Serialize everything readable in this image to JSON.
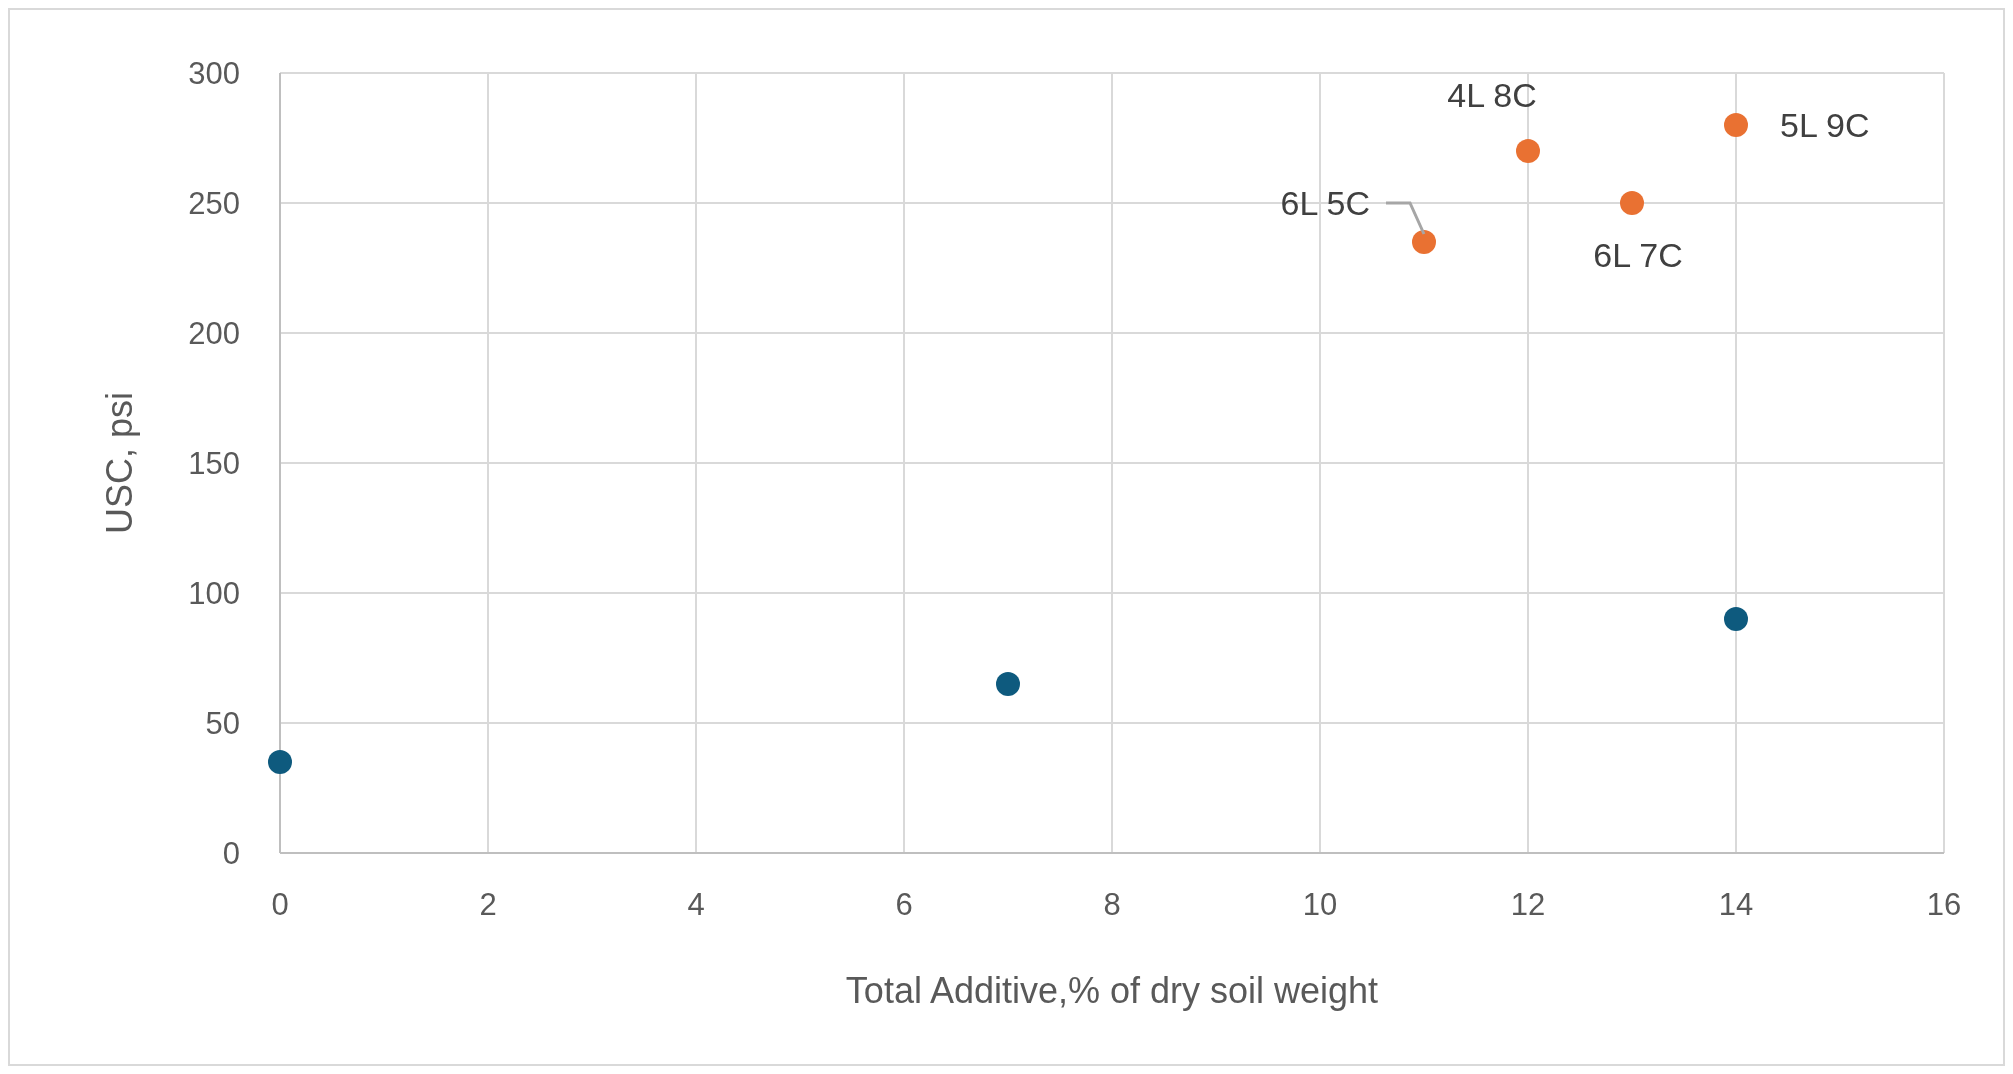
{
  "chart_data": {
    "type": "scatter",
    "xlabel": "Total Additive,% of dry soil weight",
    "ylabel": "USC, psi",
    "series": [
      {
        "color": "#0e5a7e",
        "x": [
          0,
          7,
          14
        ],
        "values": [
          35,
          65,
          90
        ]
      },
      {
        "color": "#e97132",
        "x": [
          11,
          12,
          13,
          14
        ],
        "values": [
          235,
          270,
          250,
          280
        ]
      }
    ],
    "xlim": [
      0,
      16
    ],
    "xticks": [
      0,
      2,
      4,
      6,
      8,
      10,
      12,
      14,
      16
    ],
    "ylim": [
      0,
      300
    ],
    "yticks": [
      0,
      50,
      100,
      150,
      200,
      250,
      300
    ],
    "grid": true,
    "marker": "circle",
    "annotations": [
      {
        "text": "6L 5C",
        "x": 11,
        "y": 235
      },
      {
        "text": "4L 8C",
        "x": 12,
        "y": 270
      },
      {
        "text": "6L 7C",
        "x": 13,
        "y": 250
      },
      {
        "text": "5L 9C",
        "x": 14,
        "y": 280
      }
    ]
  }
}
